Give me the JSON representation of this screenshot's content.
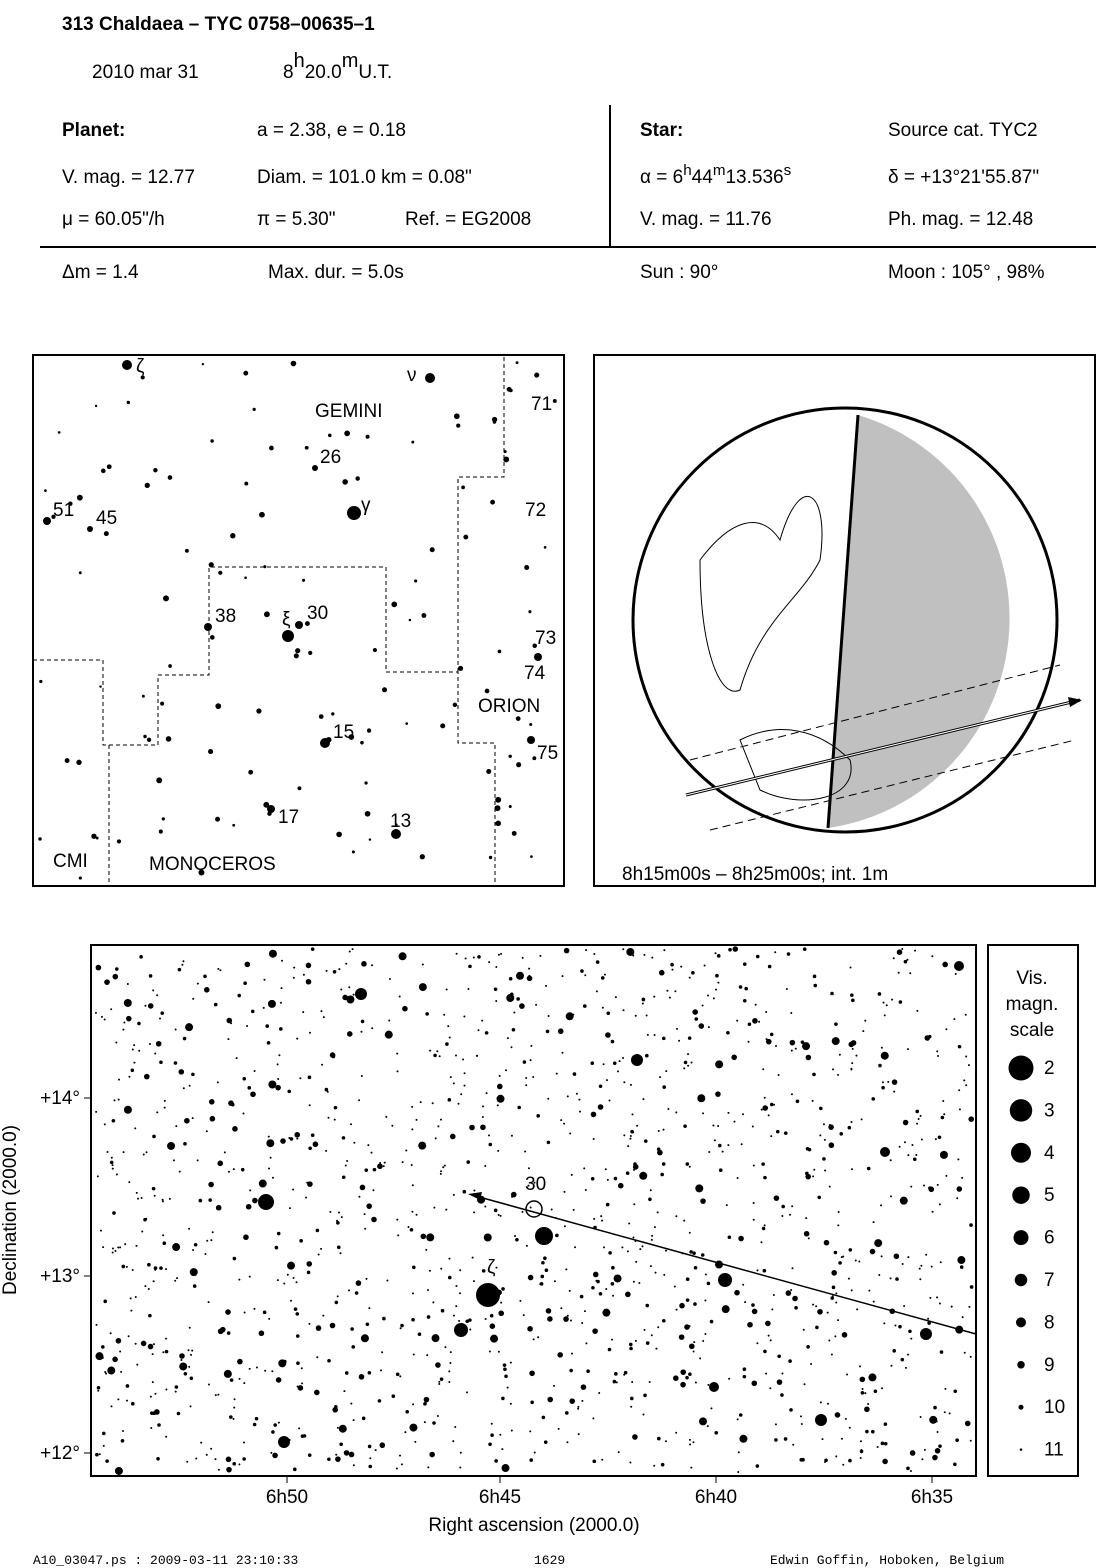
{
  "header": {
    "title": "313 Chaldaea  –  TYC 0758–00635–1",
    "date": "2010 mar 31",
    "time": [
      "8",
      "h",
      "20.0",
      "m",
      "U.T."
    ]
  },
  "info": {
    "planet": {
      "label": "Planet:",
      "orbit": "a = 2.38, e = 0.18",
      "vmag": "V. mag. = 12.77",
      "diam": "Diam. = 101.0 km = 0.08\"",
      "mu": "μ =  60.05\"/h",
      "pi": "π =  5.30\"",
      "ref": "Ref. = EG2008"
    },
    "star": {
      "label": "Star:",
      "source": "Source cat.  TYC2",
      "alpha": [
        "α =  6",
        "h",
        "44",
        "m",
        "13.536",
        "s"
      ],
      "delta": "δ = +13°21'55.87\"",
      "vmag": "V. mag. = 11.76",
      "phmag": "Ph. mag. = 12.48"
    },
    "event": {
      "dm": "Δm = 1.4",
      "maxdur": "Max. dur. = 5.0s",
      "sun": "Sun :  90°",
      "moon": "Moon : 105° , 98%"
    }
  },
  "finder": {
    "labels": [
      "ζ",
      "ν",
      "GEMINI",
      "71",
      "26",
      "51",
      "45",
      "γ",
      "72",
      "38",
      "ξ",
      "30",
      "73",
      "74",
      "ORION",
      "15",
      "75",
      "17",
      "13",
      "CMI",
      "MONOCEROS"
    ]
  },
  "globe": {
    "caption": "8h15m00s –  8h25m00s; int.  1m"
  },
  "sky": {
    "labels": [
      "30",
      "ζ"
    ],
    "yticks": [
      "+14°",
      "+13°",
      "+12°"
    ],
    "xticks": [
      "6h50",
      "6h45",
      "6h40",
      "6h35"
    ],
    "xlabel": "Right ascension (2000.0)",
    "ylabel": "Declination (2000.0)",
    "legend": {
      "title": [
        "Vis.",
        "magn.",
        "scale"
      ],
      "mags": [
        2,
        3,
        4,
        5,
        6,
        7,
        8,
        9,
        10,
        11
      ]
    }
  },
  "footer": {
    "file": "A10_03047.ps : 2009-03-11 23:10:33",
    "number": "1629",
    "author": "Edwin Goffin, Hoboken, Belgium"
  }
}
